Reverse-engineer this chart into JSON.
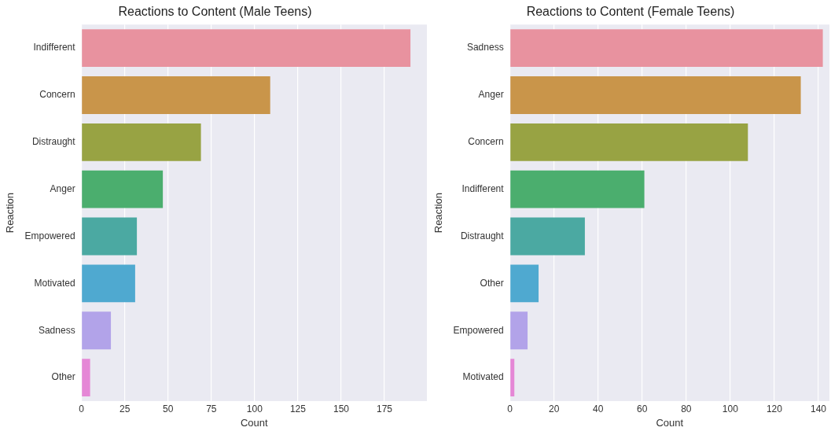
{
  "chart_data": [
    {
      "type": "bar",
      "orientation": "horizontal",
      "title": "Reactions to Content (Male Teens)",
      "xlabel": "Count",
      "ylabel": "Reaction",
      "categories": [
        "Indifferent",
        "Concern",
        "Distraught",
        "Anger",
        "Empowered",
        "Motivated",
        "Sadness",
        "Other"
      ],
      "values": [
        190,
        109,
        69,
        47,
        32,
        31,
        17,
        5
      ],
      "colors": [
        "#e8929f",
        "#c9954a",
        "#98a343",
        "#4bae6e",
        "#4ba9a2",
        "#4fa9d0",
        "#b2a3e9",
        "#e587d6"
      ],
      "xlim": [
        0,
        199.5
      ],
      "xticks": [
        0,
        25,
        50,
        75,
        100,
        125,
        150,
        175
      ],
      "grid": "x",
      "legend": false
    },
    {
      "type": "bar",
      "orientation": "horizontal",
      "title": "Reactions to Content (Female Teens)",
      "xlabel": "Count",
      "ylabel": "Reaction",
      "categories": [
        "Sadness",
        "Anger",
        "Concern",
        "Indifferent",
        "Distraught",
        "Other",
        "Empowered",
        "Motivated"
      ],
      "values": [
        142,
        132,
        108,
        61,
        34,
        13,
        8,
        2
      ],
      "colors": [
        "#e8929f",
        "#c9954a",
        "#98a343",
        "#4bae6e",
        "#4ba9a2",
        "#4fa9d0",
        "#b2a3e9",
        "#e587d6"
      ],
      "xlim": [
        0,
        145
      ],
      "xticks": [
        0,
        20,
        40,
        60,
        80,
        100,
        120,
        140
      ],
      "grid": "x",
      "legend": false
    }
  ]
}
